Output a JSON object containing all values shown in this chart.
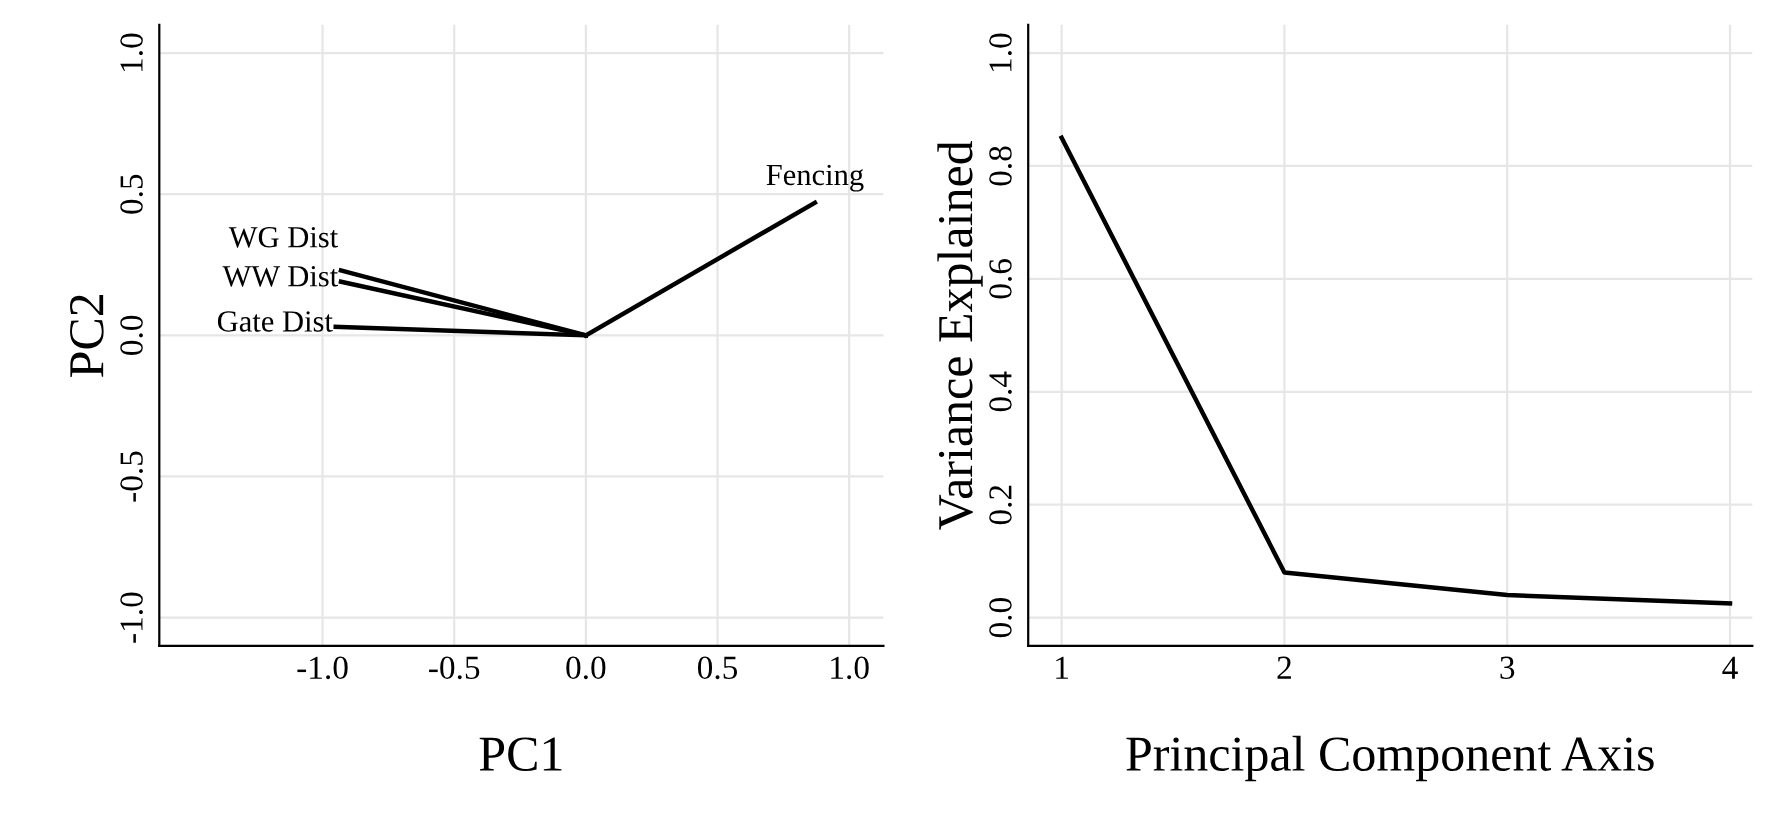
{
  "chart_data": [
    {
      "type": "line",
      "xlabel": "PC1",
      "ylabel": "PC2",
      "xlim": [
        -1.62,
        1.13
      ],
      "ylim": [
        -1.1,
        1.1
      ],
      "xticks": [
        {
          "value": -1.0,
          "label": "-1.0"
        },
        {
          "value": -0.5,
          "label": "-0.5"
        },
        {
          "value": 0.0,
          "label": "0.0"
        },
        {
          "value": 0.5,
          "label": "0.5"
        },
        {
          "value": 1.0,
          "label": "1.0"
        }
      ],
      "yticks": [
        {
          "value": -1.0,
          "label": "-1.0"
        },
        {
          "value": -0.5,
          "label": "-0.5"
        },
        {
          "value": 0.0,
          "label": "0.0"
        },
        {
          "value": 0.5,
          "label": "0.5"
        },
        {
          "value": 1.0,
          "label": "1.0"
        }
      ],
      "grid": true,
      "legend": false,
      "series": [
        {
          "name": "WG Dist",
          "color": "#000000",
          "x": [
            0,
            -0.93
          ],
          "values": [
            0,
            0.23
          ]
        },
        {
          "name": "WW Dist",
          "color": "#000000",
          "x": [
            0,
            -0.93
          ],
          "values": [
            0,
            0.19
          ]
        },
        {
          "name": "Gate Dist",
          "color": "#000000",
          "x": [
            0,
            -0.95
          ],
          "values": [
            0,
            0.03
          ]
        },
        {
          "name": "Fencing",
          "color": "#000000",
          "x": [
            0,
            0.87
          ],
          "values": [
            0,
            0.47
          ]
        }
      ]
    },
    {
      "type": "line",
      "xlabel": "Principal Component Axis",
      "ylabel": "Variance Explained",
      "xlim": [
        0.85,
        4.1
      ],
      "ylim": [
        -0.05,
        1.05
      ],
      "xticks": [
        1,
        2,
        3,
        4
      ],
      "yticks": [
        {
          "value": 0.0,
          "label": "0.0"
        },
        {
          "value": 0.2,
          "label": "0.2"
        },
        {
          "value": 0.4,
          "label": "0.4"
        },
        {
          "value": 0.6,
          "label": "0.6"
        },
        {
          "value": 0.8,
          "label": "0.8"
        },
        {
          "value": 1.0,
          "label": "1.0"
        }
      ],
      "grid": true,
      "legend": false,
      "series": [
        {
          "color": "#000000",
          "x": [
            1,
            2,
            3,
            4
          ],
          "values": [
            0.85,
            0.08,
            0.04,
            0.025
          ]
        }
      ]
    }
  ]
}
